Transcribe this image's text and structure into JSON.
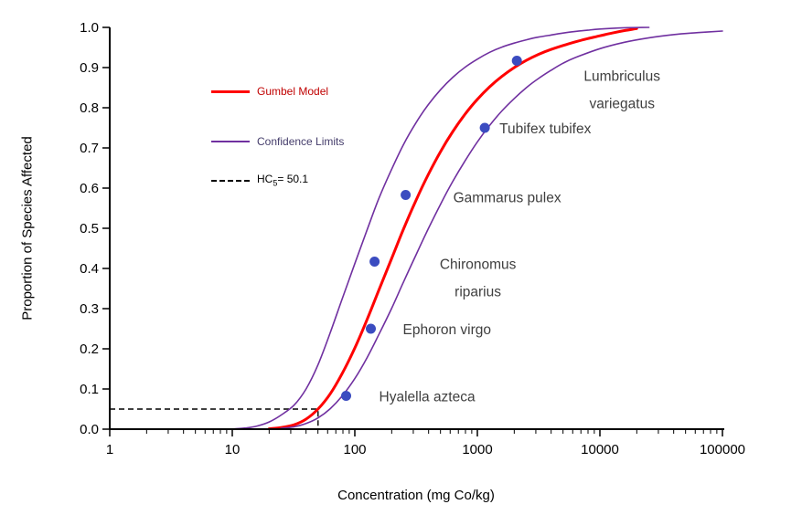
{
  "chart_data": {
    "type": "line",
    "title": "",
    "xlabel": "Concentration (mg Co/kg)",
    "ylabel": "Proportion of Species Affected",
    "x_scale": "log10",
    "xlim": [
      1,
      100000
    ],
    "ylim": [
      0,
      1
    ],
    "grid": false,
    "legend_position": "inside-upper-left",
    "axis_color": "#000000",
    "x_ticks": [
      1,
      10,
      100,
      1000,
      10000,
      100000
    ],
    "x_tick_labels": [
      "1",
      "10",
      "100",
      "1000",
      "10000",
      "100000"
    ],
    "y_ticks": [
      0,
      0.1,
      0.2,
      0.3,
      0.4,
      0.5,
      0.6,
      0.7,
      0.8,
      0.9,
      1.0
    ],
    "y_tick_labels": [
      "0.0",
      "0.1",
      "0.2",
      "0.3",
      "0.4",
      "0.5",
      "0.6",
      "0.7",
      "0.8",
      "0.9",
      "1.0"
    ],
    "series": [
      {
        "name": "Gumbel Model",
        "color": "#ff0000",
        "width": 3,
        "points": [
          [
            20,
            0.001
          ],
          [
            25,
            0.004
          ],
          [
            32,
            0.011
          ],
          [
            40,
            0.025
          ],
          [
            50,
            0.05
          ],
          [
            63,
            0.088
          ],
          [
            79,
            0.139
          ],
          [
            100,
            0.202
          ],
          [
            126,
            0.273
          ],
          [
            158,
            0.348
          ],
          [
            200,
            0.425
          ],
          [
            251,
            0.5
          ],
          [
            316,
            0.57
          ],
          [
            398,
            0.634
          ],
          [
            501,
            0.691
          ],
          [
            631,
            0.741
          ],
          [
            794,
            0.784
          ],
          [
            1000,
            0.821
          ],
          [
            1259,
            0.852
          ],
          [
            1585,
            0.878
          ],
          [
            2000,
            0.9
          ],
          [
            2512,
            0.918
          ],
          [
            3162,
            0.933
          ],
          [
            3981,
            0.945
          ],
          [
            5012,
            0.955
          ],
          [
            6310,
            0.964
          ],
          [
            7943,
            0.972
          ],
          [
            10000,
            0.979
          ],
          [
            12589,
            0.986
          ],
          [
            15849,
            0.992
          ],
          [
            19953,
            0.997
          ]
        ]
      },
      {
        "name": "Upper Confidence Limit",
        "color": "#7030a0",
        "width": 1.6,
        "points": [
          [
            10,
            0.0005
          ],
          [
            13,
            0.003
          ],
          [
            16,
            0.008
          ],
          [
            20,
            0.018
          ],
          [
            25,
            0.035
          ],
          [
            32,
            0.06
          ],
          [
            40,
            0.1
          ],
          [
            50,
            0.16
          ],
          [
            63,
            0.24
          ],
          [
            79,
            0.325
          ],
          [
            100,
            0.412
          ],
          [
            126,
            0.496
          ],
          [
            158,
            0.576
          ],
          [
            200,
            0.647
          ],
          [
            251,
            0.71
          ],
          [
            316,
            0.763
          ],
          [
            398,
            0.808
          ],
          [
            501,
            0.845
          ],
          [
            631,
            0.876
          ],
          [
            794,
            0.901
          ],
          [
            1000,
            0.921
          ],
          [
            1259,
            0.938
          ],
          [
            1585,
            0.951
          ],
          [
            2000,
            0.961
          ],
          [
            2512,
            0.969
          ],
          [
            3162,
            0.976
          ],
          [
            3981,
            0.981
          ],
          [
            5012,
            0.986
          ],
          [
            6310,
            0.99
          ],
          [
            7943,
            0.993
          ],
          [
            10000,
            0.996
          ],
          [
            15849,
            0.999
          ],
          [
            25119,
            1.0
          ]
        ]
      },
      {
        "name": "Lower Confidence Limit",
        "color": "#7030a0",
        "width": 1.6,
        "points": [
          [
            25,
            0.002
          ],
          [
            32,
            0.006
          ],
          [
            40,
            0.014
          ],
          [
            50,
            0.028
          ],
          [
            63,
            0.051
          ],
          [
            79,
            0.083
          ],
          [
            100,
            0.126
          ],
          [
            126,
            0.178
          ],
          [
            158,
            0.237
          ],
          [
            200,
            0.301
          ],
          [
            251,
            0.368
          ],
          [
            316,
            0.434
          ],
          [
            398,
            0.499
          ],
          [
            501,
            0.56
          ],
          [
            631,
            0.617
          ],
          [
            794,
            0.668
          ],
          [
            1000,
            0.715
          ],
          [
            1259,
            0.756
          ],
          [
            1585,
            0.792
          ],
          [
            2000,
            0.823
          ],
          [
            2512,
            0.85
          ],
          [
            3162,
            0.873
          ],
          [
            3981,
            0.893
          ],
          [
            5012,
            0.911
          ],
          [
            6310,
            0.925
          ],
          [
            10000,
            0.947
          ],
          [
            15849,
            0.963
          ],
          [
            25119,
            0.974
          ],
          [
            39811,
            0.982
          ],
          [
            63096,
            0.987
          ],
          [
            100000,
            0.991
          ]
        ]
      }
    ],
    "scatter": {
      "name": "Species effect data",
      "color": "#3b4cc0",
      "radius": 5.5,
      "points": [
        {
          "species": "Hyalella azteca",
          "x": 85,
          "y": 0.083,
          "label": [
            "Hyalella azteca"
          ],
          "dx": 36,
          "dy": 6,
          "anchor": "start"
        },
        {
          "species": "Ephoron virgo",
          "x": 135,
          "y": 0.25,
          "label": [
            "Ephoron virgo"
          ],
          "dx": 35,
          "dy": 6,
          "anchor": "start"
        },
        {
          "species": "Chironomus riparius",
          "x": 145,
          "y": 0.417,
          "label": [
            "Chironomus",
            "riparius"
          ],
          "dx": 113,
          "dy": 8,
          "anchor": "middle"
        },
        {
          "species": "Gammarus pulex",
          "x": 260,
          "y": 0.583,
          "label": [
            "Gammarus pulex"
          ],
          "dx": 52,
          "dy": 8,
          "anchor": "start"
        },
        {
          "species": "Tubifex tubifex",
          "x": 1150,
          "y": 0.75,
          "label": [
            "Tubifex tubifex"
          ],
          "dx": 16,
          "dy": 6,
          "anchor": "start"
        },
        {
          "species": "Lumbriculus variegatus",
          "x": 2100,
          "y": 0.917,
          "label": [
            "Lumbriculus",
            "variegatus"
          ],
          "dx": 115,
          "dy": 22,
          "anchor": "middle"
        }
      ]
    },
    "hc5": {
      "label_prefix": "HC",
      "label_sub": "5",
      "label_suffix": "= 50.1",
      "value": 50.1,
      "proportion": 0.05,
      "line_color": "#000000"
    },
    "legend": {
      "items": [
        {
          "label": "Gumbel Model",
          "text_color": "#c00000",
          "swatch": "red-line"
        },
        {
          "label": "Confidence Limits",
          "text_color": "#453d6b",
          "swatch": "purple-line"
        },
        {
          "label": "HC5= 50.1",
          "text_color": "#000000",
          "swatch": "dashed-line"
        }
      ]
    },
    "colors": {
      "gumbel_model": "#ff0000",
      "confidence_limits": "#7030a0",
      "data_points": "#3b4cc0",
      "hc5_line": "#000000"
    }
  }
}
